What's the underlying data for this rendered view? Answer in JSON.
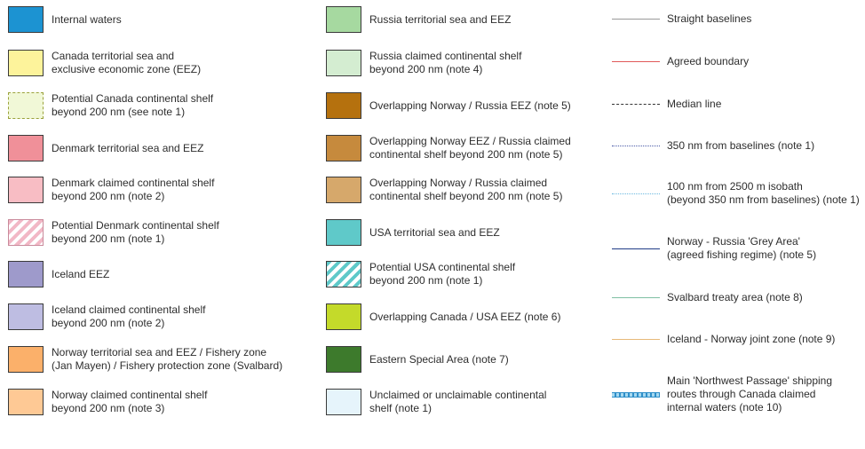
{
  "colors": {
    "internal_waters": "#1c93d2",
    "canada_ts_eez": "#fdf39b",
    "canada_potential_shelf": "#f1f8d7",
    "denmark_ts_eez": "#f09099",
    "denmark_claimed_shelf": "#f8bdc4",
    "denmark_potential_shelf": "#f2b8c6",
    "iceland_eez": "#9e9acb",
    "iceland_claimed_shelf": "#bebde2",
    "norway_ts_eez": "#fbb06a",
    "norway_claimed_shelf": "#fec995",
    "russia_ts_eez": "#a6d9a0",
    "russia_claimed_shelf": "#d4edd1",
    "overlap_norway_russia_eez": "#b5710e",
    "overlap_norway_eez_russia_shelf": "#c68a3d",
    "overlap_norway_russia_shelf": "#d6a86b",
    "usa_ts_eez": "#5fc9c9",
    "usa_potential_shelf": "#5fc9c9",
    "overlap_canada_usa": "#c4da2a",
    "eastern_special_area": "#3d7a2c",
    "unclaimed_shelf": "#e6f4fb",
    "straight_baselines": "#9a9a9a",
    "agreed_boundary": "#e15a5a",
    "median_line": "#333333",
    "nm350_from_baselines": "#4a5aa8",
    "nm100_from_isobath": "#6ab8e0",
    "grey_area": "#1f3b87",
    "svalbard": "#7fbfa3",
    "iceland_norway_joint": "#e7b979"
  },
  "legend": {
    "col1": [
      {
        "icon": "internal-waters-swatch-icon",
        "lines": [
          "Internal waters"
        ]
      },
      {
        "icon": "canada-eez-swatch-icon",
        "lines": [
          "Canada territorial sea and",
          "exclusive economic zone (EEZ)"
        ]
      },
      {
        "icon": "canada-potential-shelf-swatch-icon",
        "lines": [
          "Potential Canada continental shelf",
          "beyond 200 nm (see note 1)"
        ]
      },
      {
        "icon": "denmark-eez-swatch-icon",
        "lines": [
          "Denmark territorial sea and EEZ"
        ]
      },
      {
        "icon": "denmark-claimed-shelf-swatch-icon",
        "lines": [
          "Denmark claimed continental shelf",
          "beyond 200 nm (note 2)"
        ]
      },
      {
        "icon": "denmark-potential-shelf-swatch-icon",
        "lines": [
          "Potential Denmark continental shelf",
          "beyond 200 nm (note 1)"
        ]
      },
      {
        "icon": "iceland-eez-swatch-icon",
        "lines": [
          "Iceland EEZ"
        ]
      },
      {
        "icon": "iceland-claimed-shelf-swatch-icon",
        "lines": [
          "Iceland claimed continental shelf",
          "beyond 200 nm (note 2)"
        ]
      },
      {
        "icon": "norway-eez-swatch-icon",
        "lines": [
          "Norway territorial sea and EEZ / Fishery zone",
          "(Jan Mayen) / Fishery protection zone (Svalbard)"
        ]
      },
      {
        "icon": "norway-claimed-shelf-swatch-icon",
        "lines": [
          "Norway claimed continental shelf",
          "beyond 200 nm (note 3)"
        ]
      }
    ],
    "col2": [
      {
        "icon": "russia-eez-swatch-icon",
        "lines": [
          "Russia territorial sea and EEZ"
        ]
      },
      {
        "icon": "russia-claimed-shelf-swatch-icon",
        "lines": [
          "Russia claimed continental shelf",
          "beyond 200 nm (note 4)"
        ]
      },
      {
        "icon": "overlap-norway-russia-eez-swatch-icon",
        "lines": [
          "Overlapping Norway / Russia EEZ (note 5)"
        ]
      },
      {
        "icon": "overlap-norway-eez-russia-shelf-swatch-icon",
        "lines": [
          "Overlapping Norway EEZ / Russia claimed",
          "continental shelf beyond 200 nm (note 5)"
        ]
      },
      {
        "icon": "overlap-norway-russia-shelf-swatch-icon",
        "lines": [
          "Overlapping Norway / Russia claimed",
          "continental shelf beyond 200 nm (note 5)"
        ]
      },
      {
        "icon": "usa-eez-swatch-icon",
        "lines": [
          "USA territorial sea and EEZ"
        ]
      },
      {
        "icon": "usa-potential-shelf-swatch-icon",
        "lines": [
          "Potential USA continental shelf",
          "beyond 200 nm (note 1)"
        ]
      },
      {
        "icon": "overlap-canada-usa-swatch-icon",
        "lines": [
          "Overlapping Canada / USA EEZ (note 6)"
        ]
      },
      {
        "icon": "eastern-special-area-swatch-icon",
        "lines": [
          "Eastern Special Area (note 7)"
        ]
      },
      {
        "icon": "unclaimed-shelf-swatch-icon",
        "lines": [
          "Unclaimed or unclaimable continental",
          "shelf (note 1)"
        ]
      }
    ],
    "col3": [
      {
        "icon": "straight-baselines-line-icon",
        "lines": [
          "Straight baselines"
        ]
      },
      {
        "icon": "agreed-boundary-line-icon",
        "lines": [
          "Agreed boundary"
        ]
      },
      {
        "icon": "median-line-icon",
        "lines": [
          "Median line"
        ]
      },
      {
        "icon": "nm350-baselines-line-icon",
        "lines": [
          "350 nm from baselines (note 1)"
        ]
      },
      {
        "icon": "nm100-isobath-line-icon",
        "lines": [
          "100 nm from 2500 m isobath",
          "(beyond 350 nm from baselines) (note 1)"
        ]
      },
      {
        "icon": "grey-area-line-icon",
        "lines": [
          "Norway - Russia 'Grey Area'",
          "(agreed fishing regime) (note 5)"
        ]
      },
      {
        "icon": "svalbard-line-icon",
        "lines": [
          "Svalbard treaty area (note 8)"
        ]
      },
      {
        "icon": "iceland-norway-joint-line-icon",
        "lines": [
          "Iceland - Norway joint zone (note 9)"
        ]
      },
      {
        "icon": "northwest-passage-line-icon",
        "lines": [
          "Main 'Northwest Passage' shipping",
          "routes through Canada claimed",
          "internal waters (note 10)"
        ]
      }
    ]
  }
}
